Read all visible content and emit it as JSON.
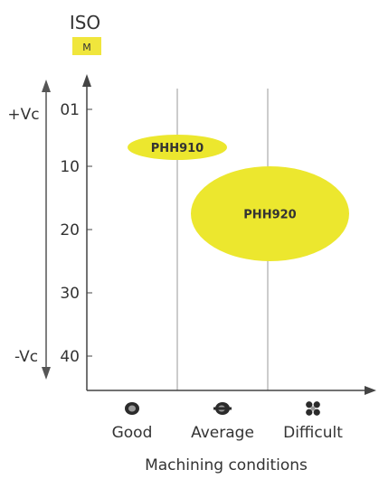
{
  "chart_data": {
    "type": "bubble",
    "iso_label": "ISO",
    "iso_badge": "M",
    "colors": {
      "badge": "#f0e63c",
      "bubble": "#ece72e",
      "axis": "#444444",
      "text": "#333333"
    },
    "y_ticks": [
      "01",
      "10",
      "20",
      "30",
      "40"
    ],
    "y_top_label": "+Vc",
    "y_bottom_label": "-Vc",
    "categories": [
      "Good",
      "Average",
      "Difficult"
    ],
    "category_icons": [
      "insert-good-icon",
      "insert-average-icon",
      "insert-difficult-icon"
    ],
    "xlabel": "Machining conditions",
    "grid": "vertical lines between conditions",
    "grades": [
      {
        "name": "PHH910",
        "x_from": 0.45,
        "x_to": 1.55,
        "y_from": 5,
        "y_to": 9
      },
      {
        "name": "PHH920",
        "x_from": 1.15,
        "x_to": 2.9,
        "y_from": 10,
        "y_to": 25
      }
    ]
  }
}
